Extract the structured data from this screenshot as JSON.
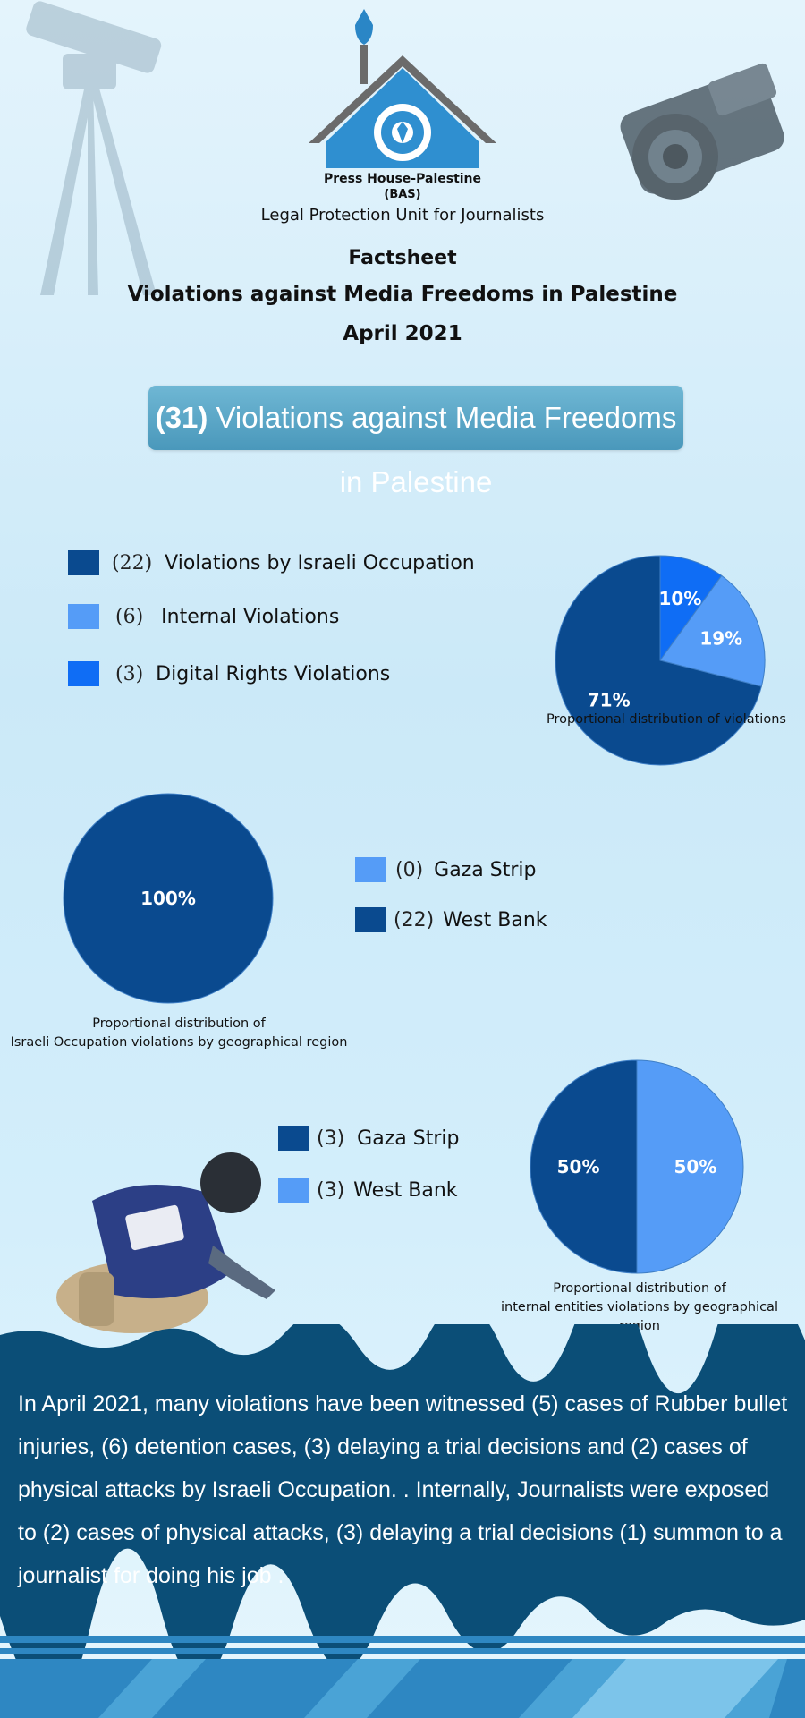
{
  "header": {
    "org_name": "Press House-Palestine",
    "org_abbr": "(BAS)",
    "unit": "Legal Protection Unit for Journalists",
    "factsheet_label": "Factsheet",
    "title": "Violations against Media Freedoms in Palestine",
    "date": "April 2021"
  },
  "banner": {
    "count": "(31)",
    "text": "Violations against Media Freedoms in Palestine"
  },
  "colors": {
    "dark_blue": "#0a4a8f",
    "light_blue": "#559cf7",
    "bright_blue": "#0f6df5",
    "band": "#0b4e77"
  },
  "chart_data": [
    {
      "type": "pie",
      "title": "",
      "caption": "Proportional distribution of violations",
      "legend": [
        {
          "count": "(22)",
          "label": "Violations by Israeli Occupation",
          "color": "#0a4a8f"
        },
        {
          "count": "(6)",
          "label": "Internal Violations",
          "color": "#559cf7"
        },
        {
          "count": "(3)",
          "label": "Digital Rights Violations",
          "color": "#0f6df5"
        }
      ],
      "slices": [
        {
          "value": 10,
          "label": "10%",
          "color": "#0f6df5"
        },
        {
          "value": 19,
          "label": "19%",
          "color": "#559cf7"
        },
        {
          "value": 71,
          "label": "71%",
          "color": "#0a4a8f"
        }
      ]
    },
    {
      "type": "pie",
      "title": "",
      "caption_lines": [
        "Proportional distribution of",
        "Israeli Occupation violations by geographical region"
      ],
      "legend": [
        {
          "count": "(0)",
          "label": "Gaza Strip",
          "color": "#559cf7"
        },
        {
          "count": "(22)",
          "label": "West Bank",
          "color": "#0a4a8f"
        }
      ],
      "slices": [
        {
          "value": 100,
          "label": "100%",
          "color": "#0a4a8f"
        }
      ]
    },
    {
      "type": "pie",
      "title": "",
      "caption_lines": [
        "Proportional distribution of",
        "internal entities violations by geographical region"
      ],
      "legend": [
        {
          "count": "(3)",
          "label": "Gaza Strip",
          "color": "#0a4a8f"
        },
        {
          "count": "(3)",
          "label": "West Bank",
          "color": "#559cf7"
        }
      ],
      "slices": [
        {
          "value": 50,
          "label": "50%",
          "color": "#559cf7"
        },
        {
          "value": 50,
          "label": "50%",
          "color": "#0a4a8f"
        }
      ]
    }
  ],
  "summary": "In April 2021, many violations have been witnessed (5) cases of Rubber bullet injuries, (6) detention cases, (3)  delaying a trial decisions and (2) cases of  physical attacks by Israeli Occupation. . Internally, Journalists were exposed to (2) cases of physical attacks, (3) delaying a trial decisions  (1) summon to a journalist for doing his job ."
}
